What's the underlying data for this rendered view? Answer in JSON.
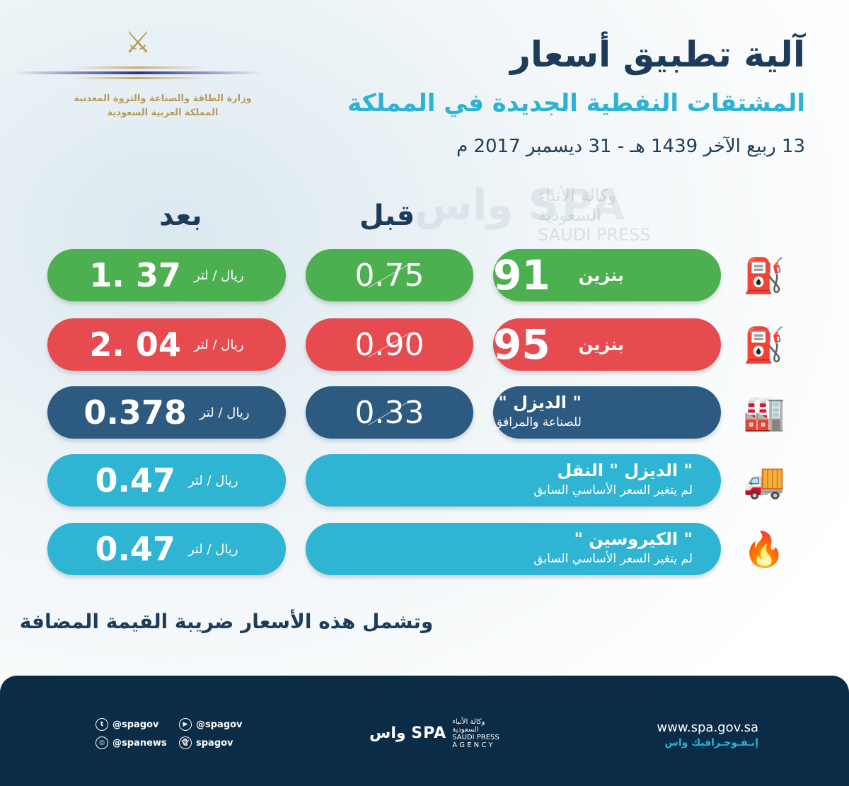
{
  "logo": {
    "emblem_icon": "palm-swords-emblem",
    "ministry_line1": "وزارة الطاقة والصناعة والثروة المعدنية",
    "ministry_line2": "المملكة العربية السعودية"
  },
  "header": {
    "title": "آلية تطبيق أسعار",
    "subtitle": "المشتقات النفطية الجديدة في المملكة",
    "date": "13 ربيع الآخر 1439 هـ - 31 ديسمبر 2017 م"
  },
  "watermark": {
    "mark": "واس SPA",
    "line1": "وكالة الأنباء",
    "line2": "السعودية",
    "line3": "SAUDI PRESS"
  },
  "columns": {
    "after": "بعد",
    "before": "قبل"
  },
  "colors": {
    "green": "#4cb050",
    "red": "#e64b50",
    "navy": "#2c5a80",
    "cyan": "#2fb5d3",
    "title": "#1d3b5a",
    "footer": "#0b2c46"
  },
  "rows": [
    {
      "icon": "gas-pump-icon",
      "name": "بنزين",
      "grade": "91",
      "before": "0.75",
      "after": "1. 37",
      "unit": "ريال / لتر"
    },
    {
      "icon": "gas-pump-icon",
      "name": "بنزين",
      "grade": "95",
      "before": "0.90",
      "after": "2. 04",
      "unit": "ريال / لتر"
    },
    {
      "icon": "factory-icon",
      "name": "\" الديزل \"",
      "sub": "للصناعة والمرافق",
      "before": "0.33",
      "after": "0.378",
      "unit": "ريال / لتر"
    },
    {
      "icon": "tanker-truck-icon",
      "name": "\" الديزل \" النقل",
      "sub": "لم يتغير السعر الأساسي السابق",
      "after": "0.47",
      "unit": "ريال / لتر"
    },
    {
      "icon": "flame-icon",
      "name": "\" الكيروسين \"",
      "sub": "لم يتغير السعر الأساسي السابق",
      "after": "0.47",
      "unit": "ريال / لتر"
    }
  ],
  "vat_note": "وتشمل هذه الأسعار ضريبة القيمة المضافة",
  "footer": {
    "social": [
      {
        "icon": "twitter-icon",
        "handle": "@spagov"
      },
      {
        "icon": "youtube-icon",
        "handle": "@spagov"
      },
      {
        "icon": "instagram-icon",
        "handle": "@spanews"
      },
      {
        "icon": "snapchat-icon",
        "handle": "spagov"
      }
    ],
    "spa_mark": "واس SPA",
    "spa_ar1": "وكالة الأنباء",
    "spa_ar2": "السعودية",
    "spa_en1": "SAUDI PRESS",
    "spa_en2": "A G E N C Y",
    "url": "www.spa.gov.sa",
    "infographic": "إنـفـوجـرافيك واس"
  }
}
